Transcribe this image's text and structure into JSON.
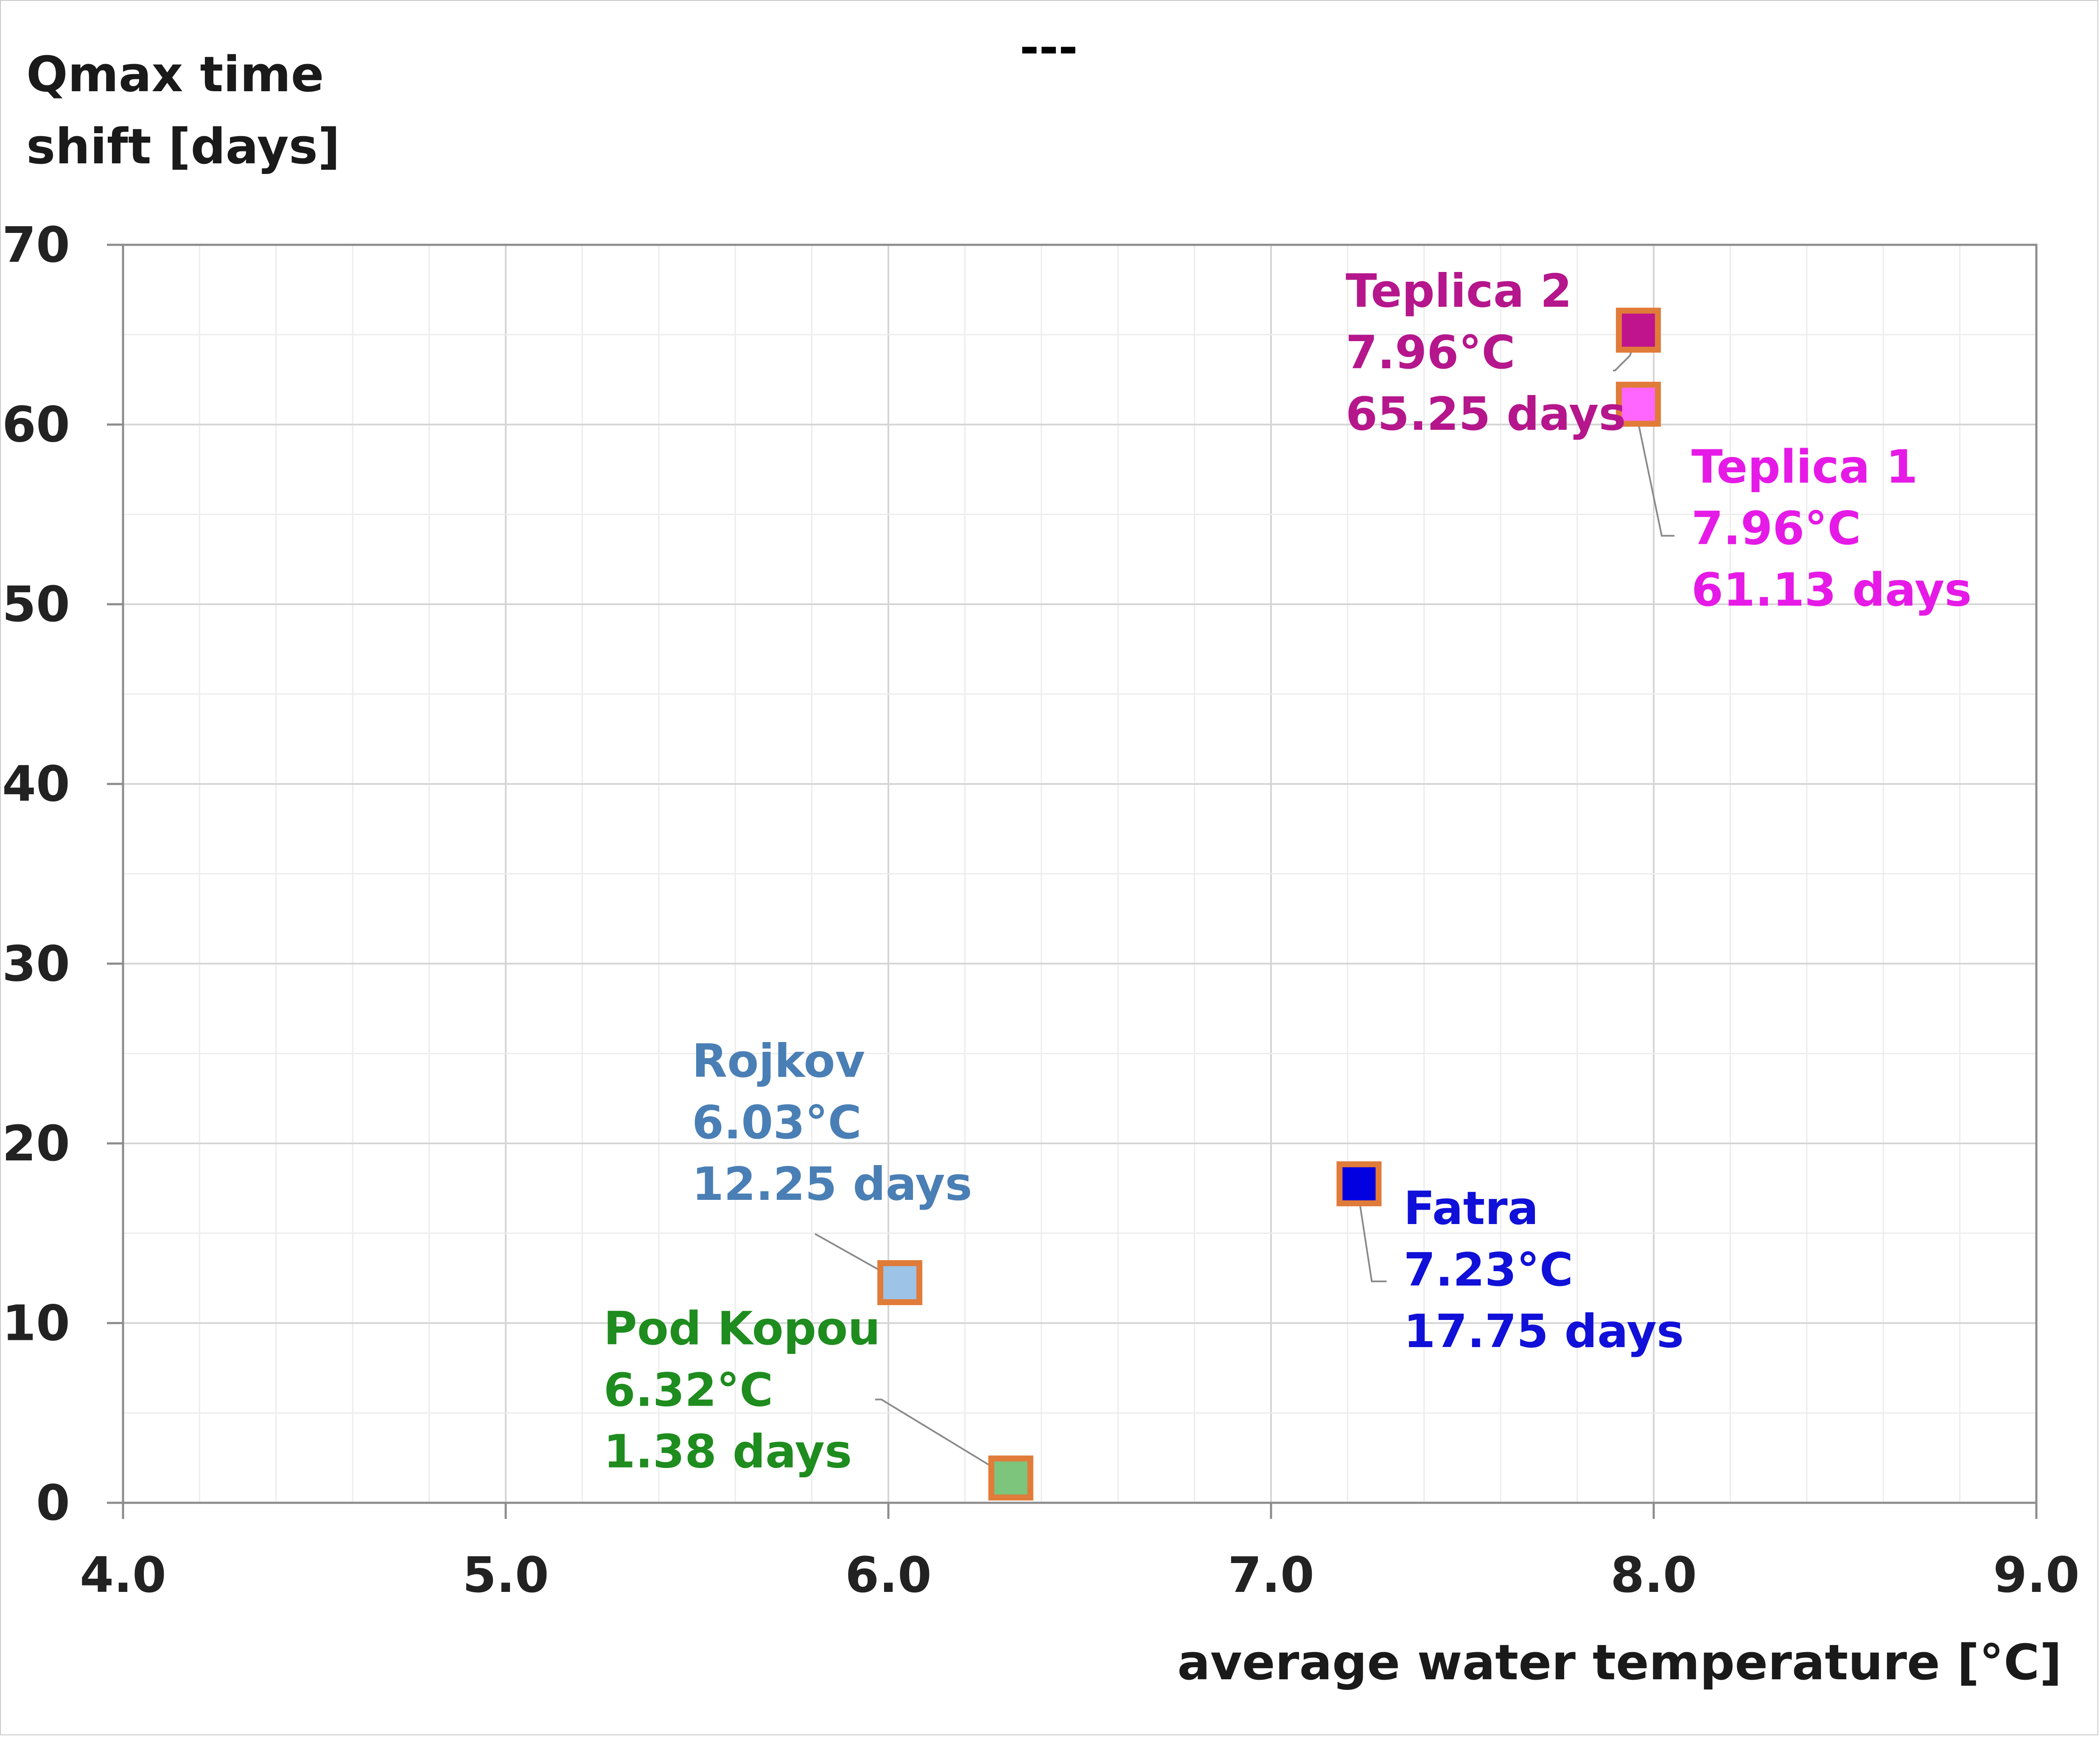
{
  "chart_data": {
    "type": "scatter",
    "title": "---",
    "ylabel_lines": [
      "Qmax time",
      "shift [days]"
    ],
    "xlabel": "average water temperature  [°C]",
    "xlim": [
      4.0,
      9.0
    ],
    "ylim": [
      0,
      70
    ],
    "x_ticks": [
      "4.0",
      "5.0",
      "6.0",
      "7.0",
      "8.0",
      "9.0"
    ],
    "y_ticks": [
      "0",
      "10",
      "20",
      "30",
      "40",
      "50",
      "60",
      "70"
    ],
    "grid": true,
    "points": [
      {
        "name": "Teplica 2",
        "x": 7.96,
        "y": 65.25,
        "label_lines": [
          "Teplica 2",
          "7.96°C",
          "65.25 days"
        ],
        "fill": "#C0148C",
        "text_color": "#B5168C",
        "edge": "#E07B39"
      },
      {
        "name": "Teplica 1",
        "x": 7.96,
        "y": 61.13,
        "label_lines": [
          "Teplica 1",
          "7.96°C",
          "61.13 days"
        ],
        "fill": "#FF66FF",
        "text_color": "#E61AE6",
        "edge": "#E07B39"
      },
      {
        "name": "Rojkov",
        "x": 6.03,
        "y": 12.25,
        "label_lines": [
          "Rojkov",
          "6.03°C",
          "12.25 days"
        ],
        "fill": "#9DC3E6",
        "text_color": "#4A7FB5",
        "edge": "#E07B39"
      },
      {
        "name": "Fatra",
        "x": 7.23,
        "y": 17.75,
        "label_lines": [
          "Fatra",
          "7.23°C",
          "17.75 days"
        ],
        "fill": "#0000E0",
        "text_color": "#1010D8",
        "edge": "#E07B39"
      },
      {
        "name": "Pod Kopou",
        "x": 6.32,
        "y": 1.38,
        "label_lines": [
          "Pod Kopou",
          "6.32°C",
          "1.38 days"
        ],
        "fill": "#7DC47D",
        "text_color": "#1E8C1E",
        "edge": "#E07B39"
      }
    ]
  }
}
